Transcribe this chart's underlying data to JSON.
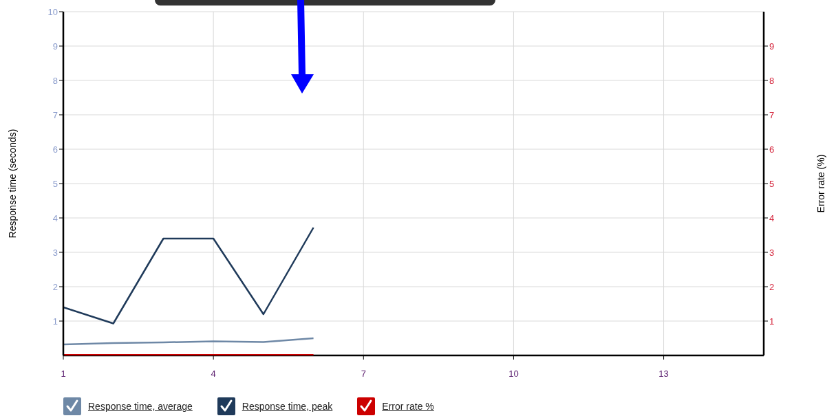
{
  "chart_data": {
    "type": "line",
    "ylabel": "Response time (seconds)",
    "y2label": "Error rate (%)",
    "x": [
      1,
      2,
      3,
      4,
      5,
      6
    ],
    "xlim": [
      1,
      15
    ],
    "xticks": [
      1,
      4,
      7,
      10,
      13
    ],
    "ylim": [
      0,
      10
    ],
    "yticks": [
      1,
      2,
      3,
      4,
      5,
      6,
      7,
      8,
      9,
      10
    ],
    "y2lim": [
      0,
      10
    ],
    "y2ticks": [
      1,
      2,
      3,
      4,
      5,
      6,
      7,
      8,
      9
    ],
    "grid": true,
    "legend": "bottom left",
    "marker": "none",
    "line_style": "solid",
    "series": [
      {
        "name": "Response time, average",
        "color": "#6e88a6",
        "values": [
          0.32,
          0.36,
          0.38,
          0.41,
          0.39,
          0.5
        ]
      },
      {
        "name": "Response time, peak",
        "color": "#1f3a5a",
        "values": [
          1.4,
          0.93,
          3.4,
          3.4,
          1.2,
          3.72
        ]
      },
      {
        "name": "Error rate %",
        "color": "#cc0000",
        "axis": "y2",
        "values": [
          0,
          0,
          0,
          0,
          0,
          0
        ]
      }
    ]
  }
}
